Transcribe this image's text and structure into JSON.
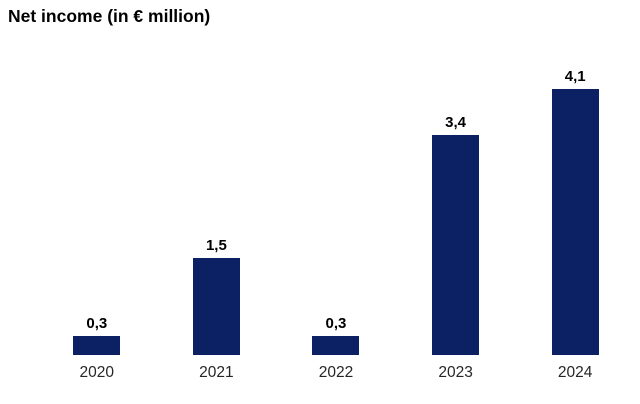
{
  "title": "Net income (in € million)",
  "chart_data": {
    "type": "bar",
    "title": "Net income (in € million)",
    "categories": [
      "2020",
      "2021",
      "2022",
      "2023",
      "2024"
    ],
    "values": [
      0.3,
      1.5,
      0.3,
      3.4,
      4.1
    ],
    "value_labels": [
      "0,3",
      "1,5",
      "0,3",
      "3,4",
      "4,1"
    ],
    "xlabel": "",
    "ylabel": "",
    "ylim": [
      0,
      4.5
    ],
    "grid": false,
    "legend": false,
    "axes_visible": false,
    "data_labels_position": "above bars",
    "decimal_separator": ",",
    "bar_color": "#0b2163",
    "background_color": "#ffffff",
    "label_color": "#000000",
    "category_label_color": "#262626"
  }
}
